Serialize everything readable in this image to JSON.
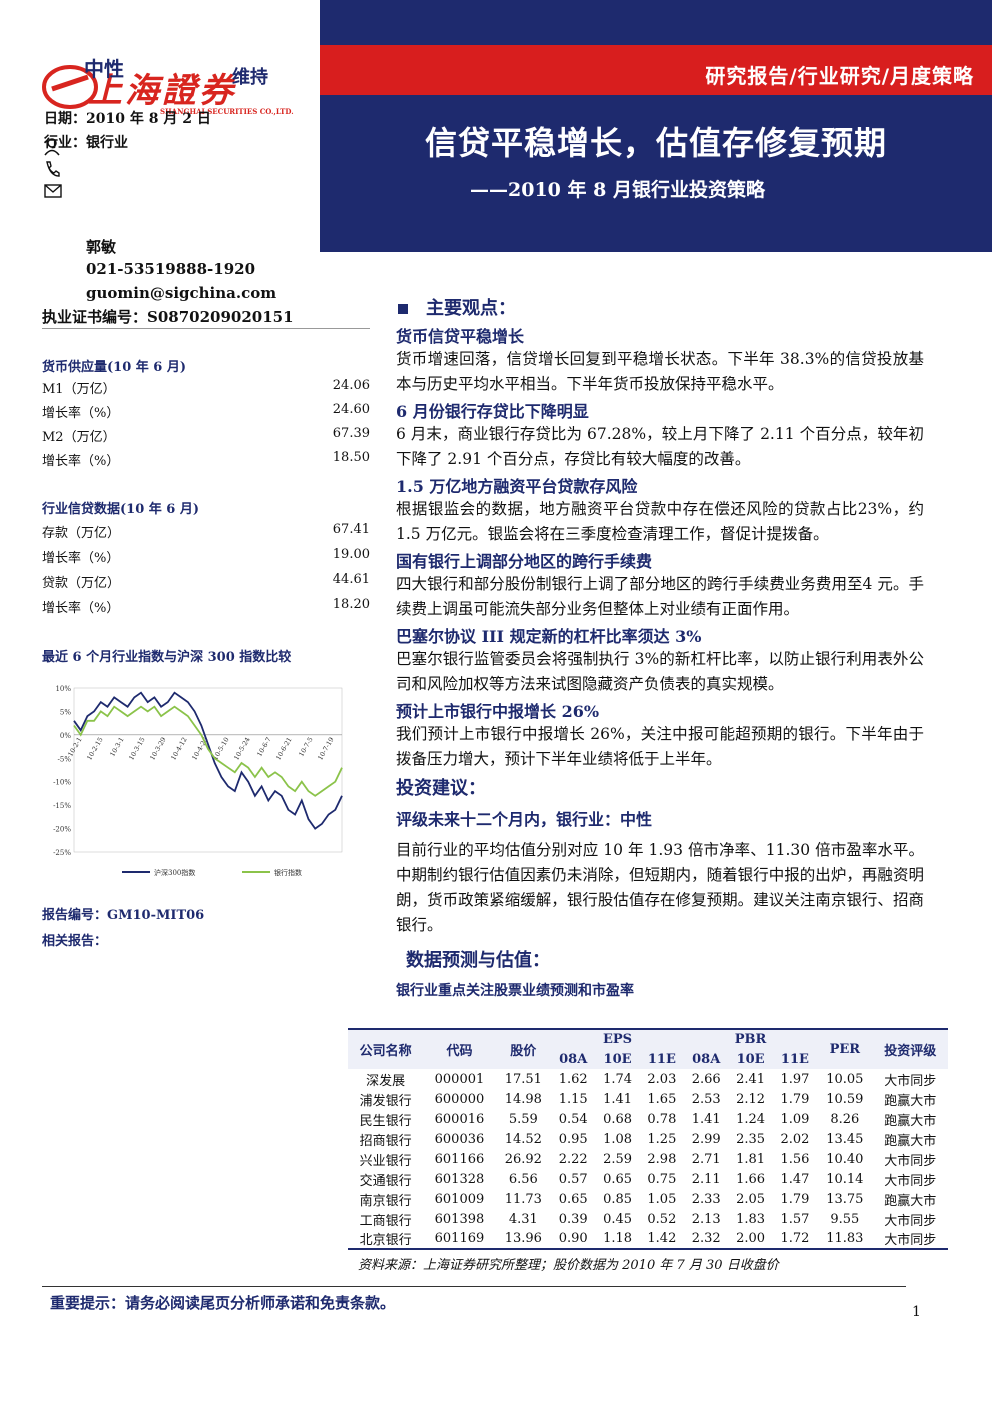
{
  "logo": {
    "text_cn": "上海證券",
    "text_en": "SHANGHAI SECURITIES CO.,LTD."
  },
  "rating_header": {
    "label": "中性",
    "sub": "维持"
  },
  "header": {
    "tag": "研究报告/行业研究/月度策略",
    "title": "信贷平稳增长，估值存修复预期",
    "subtitle": "——2010 年 8 月银行业投资策略"
  },
  "meta": {
    "date_label": "日期：",
    "date_value": "2010 年 8 月 2 日",
    "industry_label": "行业：",
    "industry_value": "银行业"
  },
  "analyst": {
    "name": "郭敏",
    "phone": "021-53519888-1920",
    "email": "guomin@sigchina.com",
    "cert_label": "执业证书编号：",
    "cert_value": "S0870209020151"
  },
  "money_supply": {
    "title": "货币供应量(10 年 6 月)",
    "rows": [
      {
        "label": "M1（万亿）",
        "value": "24.06"
      },
      {
        "label": "增长率（%）",
        "value": "24.60"
      },
      {
        "label": "M2（万亿）",
        "value": "67.39"
      },
      {
        "label": "增长率（%）",
        "value": "18.50"
      }
    ]
  },
  "credit_data": {
    "title": "行业信贷数据(10 年 6 月)",
    "rows": [
      {
        "label": "存款（万亿）",
        "value": "67.41"
      },
      {
        "label": "增长率（%）",
        "value": "19.00"
      },
      {
        "label": "贷款（万亿）",
        "value": "44.61"
      },
      {
        "label": "增长率（%）",
        "value": "18.20"
      }
    ]
  },
  "chart_title": "最近 6 个月行业指数与沪深 300 指数比较",
  "chart_data": {
    "type": "line",
    "ylim": [
      -25,
      10
    ],
    "y_ticks": [
      "10%",
      "5%",
      "0%",
      "-5%",
      "-10%",
      "-15%",
      "-20%",
      "-25%"
    ],
    "x_ticks": [
      "10-2-1",
      "10-2-15",
      "10-3-1",
      "10-3-15",
      "10-3-29",
      "10-4-12",
      "10-4-26",
      "10-5-10",
      "10-5-24",
      "10-6-7",
      "10-6-21",
      "10-7-5",
      "10-7-19"
    ],
    "series": [
      {
        "name": "沪深300指数",
        "color": "#1e2a6e",
        "values": [
          3,
          1,
          4,
          5,
          7,
          6,
          8,
          7,
          6,
          8,
          9,
          7,
          8,
          6,
          7,
          9,
          8,
          7,
          5,
          2,
          -2,
          -6,
          -9,
          -11,
          -12,
          -8,
          -10,
          -13,
          -11,
          -14,
          -12,
          -13,
          -16,
          -17,
          -14,
          -18,
          -20,
          -19,
          -17,
          -16,
          -13
        ]
      },
      {
        "name": "银行指数",
        "color": "#8bc34a",
        "values": [
          2,
          0,
          3,
          3,
          5,
          4,
          6,
          5,
          4,
          5,
          6,
          5,
          6,
          4,
          5,
          6,
          5,
          4,
          2,
          0,
          -3,
          -5,
          -6,
          -7,
          -8,
          -6,
          -7,
          -9,
          -7,
          -9,
          -8,
          -9,
          -11,
          -12,
          -10,
          -12,
          -13,
          -12,
          -11,
          -10,
          -7
        ]
      }
    ]
  },
  "report_no": {
    "label": "报告编号：",
    "value": "GM10-MIT06"
  },
  "related_label": "相关报告：",
  "main": {
    "section1": "主要观点：",
    "points": [
      {
        "title": "货币信贷平稳增长",
        "text": "货币增速回落，信贷增长回复到平稳增长状态。下半年 38.3%的信贷投放基本与历史平均水平相当。下半年货币投放保持平稳水平。"
      },
      {
        "title": "6 月份银行存贷比下降明显",
        "text": "6 月末，商业银行存贷比为 67.28%，较上月下降了 2.11 个百分点，较年初下降了 2.91 个百分点，存贷比有较大幅度的改善。"
      },
      {
        "title": "1.5 万亿地方融资平台贷款存风险",
        "text": "根据银监会的数据，地方融资平台贷款中存在偿还风险的贷款占比23%，约 1.5 万亿元。银监会将在三季度检查清理工作，督促计提拨备。"
      },
      {
        "title": "国有银行上调部分地区的跨行手续费",
        "text": "四大银行和部分股份制银行上调了部分地区的跨行手续费业务费用至4 元。手续费上调虽可能流失部分业务但整体上对业绩有正面作用。"
      },
      {
        "title": "巴塞尔协议 III 规定新的杠杆比率须达 3%",
        "text": "巴塞尔银行监管委员会将强制执行 3%的新杠杆比率，以防止银行利用表外公司和风险加权等方法来试图隐藏资产负债表的真实规模。"
      },
      {
        "title": "预计上市银行中报增长 26%",
        "text": "我们预计上市银行中报增长 26%，关注中报可能超预期的银行。下半年由于拨备压力增大，预计下半年业绩将低于上半年。"
      }
    ],
    "section2": "投资建议：",
    "rating_line": "评级未来十二个月内，银行业：中性",
    "advice": "目前行业的平均估值分别对应 10 年 1.93 倍市净率、11.30 倍市盈率水平。中期制约银行估值因素仍未消除，但短期内，随着银行中报的出炉，再融资明朗，货币政策紧缩缓解，银行股估值存在修复预期。建议关注南京银行、招商银行。",
    "section3": "数据预测与估值：",
    "table_title": "银行业重点关注股票业绩预测和市盈率"
  },
  "table": {
    "headers": {
      "company": "公司名称",
      "code": "代码",
      "price": "股价",
      "eps": "EPS",
      "pbr": "PBR",
      "per": "PER",
      "rating": "投资评级",
      "y1": "08A",
      "y2": "10E",
      "y3": "11E"
    },
    "rows": [
      [
        "深发展",
        "000001",
        "17.51",
        "1.62",
        "1.74",
        "2.03",
        "2.66",
        "2.41",
        "1.97",
        "10.05",
        "大市同步"
      ],
      [
        "浦发银行",
        "600000",
        "14.98",
        "1.15",
        "1.41",
        "1.65",
        "2.53",
        "2.12",
        "1.79",
        "10.59",
        "跑赢大市"
      ],
      [
        "民生银行",
        "600016",
        "5.59",
        "0.54",
        "0.68",
        "0.78",
        "1.41",
        "1.24",
        "1.09",
        "8.26",
        "跑赢大市"
      ],
      [
        "招商银行",
        "600036",
        "14.52",
        "0.95",
        "1.08",
        "1.25",
        "2.99",
        "2.35",
        "2.02",
        "13.45",
        "跑赢大市"
      ],
      [
        "兴业银行",
        "601166",
        "26.92",
        "2.22",
        "2.59",
        "2.98",
        "2.71",
        "1.81",
        "1.56",
        "10.40",
        "大市同步"
      ],
      [
        "交通银行",
        "601328",
        "6.56",
        "0.57",
        "0.65",
        "0.75",
        "2.11",
        "1.66",
        "1.47",
        "10.14",
        "大市同步"
      ],
      [
        "南京银行",
        "601009",
        "11.73",
        "0.65",
        "0.85",
        "1.05",
        "2.33",
        "2.05",
        "1.79",
        "13.75",
        "跑赢大市"
      ],
      [
        "工商银行",
        "601398",
        "4.31",
        "0.39",
        "0.45",
        "0.52",
        "2.13",
        "1.83",
        "1.57",
        "9.55",
        "大市同步"
      ],
      [
        "北京银行",
        "601169",
        "13.96",
        "0.90",
        "1.18",
        "1.42",
        "2.32",
        "2.00",
        "1.72",
        "11.83",
        "大市同步"
      ]
    ],
    "note": "资料来源：上海证券研究所整理；股价数据为 2010 年 7 月 30 日收盘价"
  },
  "footer": {
    "tip": "重要提示：请务必阅读尾页分析师承诺和免责条款。",
    "page": "1"
  },
  "colors": {
    "navy": "#1e2a6e",
    "red": "#d81e1e",
    "green": "#8bc34a"
  }
}
